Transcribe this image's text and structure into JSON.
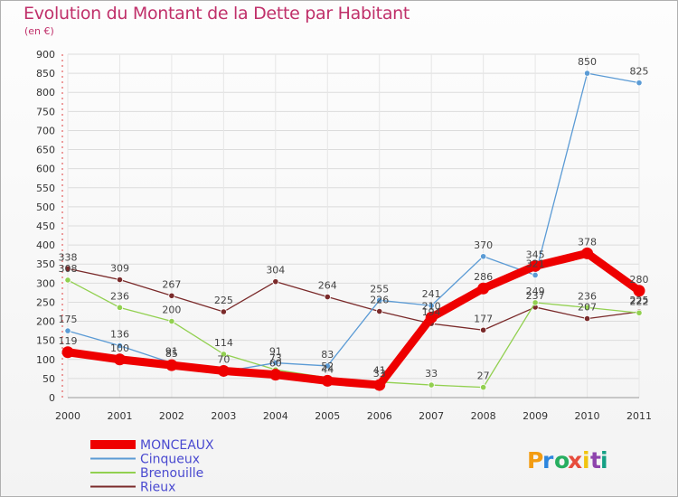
{
  "chart_data": {
    "type": "line",
    "title": "Evolution du Montant de la Dette par Habitant",
    "subtitle": "(en €)",
    "xlabel": "",
    "ylabel": "",
    "categories": [
      "2000",
      "2001",
      "2002",
      "2003",
      "2004",
      "2005",
      "2006",
      "2007",
      "2008",
      "2009",
      "2010",
      "2011"
    ],
    "ylim": [
      0,
      900
    ],
    "yticks": [
      0,
      50,
      100,
      150,
      200,
      250,
      300,
      350,
      400,
      450,
      500,
      550,
      600,
      650,
      700,
      750,
      800,
      850,
      900
    ],
    "grid": true,
    "legend": "bottom-left",
    "series": [
      {
        "name": "MONCEAUX",
        "color": "#ee0000",
        "values": [
          119,
          100,
          85,
          70,
          60,
          44,
          33,
          210,
          286,
          345,
          378,
          280
        ]
      },
      {
        "name": "Cinqueux",
        "color": "#5b9bd5",
        "values": [
          175,
          136,
          91,
          68,
          91,
          83,
          255,
          241,
          370,
          321,
          850,
          825
        ]
      },
      {
        "name": "Brenouille",
        "color": "#92d050",
        "values": [
          308,
          236,
          200,
          114,
          73,
          52,
          41,
          33,
          27,
          249,
          236,
          222
        ]
      },
      {
        "name": "Rieux",
        "color": "#7a2a2a",
        "values": [
          338,
          309,
          267,
          225,
          304,
          264,
          226,
          194,
          177,
          237,
          207,
          225
        ]
      }
    ],
    "data_labels": [
      {
        "series": 0,
        "labels": [
          "119",
          "100",
          "85",
          "70",
          "60",
          "44",
          "33",
          "210",
          "286",
          "345",
          "378",
          "280"
        ]
      },
      {
        "series": 1,
        "labels": [
          "175",
          "136",
          "91",
          "",
          "91",
          "83",
          "255",
          "241",
          "370",
          "321",
          "850",
          "825"
        ]
      },
      {
        "series": 2,
        "labels": [
          "308",
          "236",
          "200",
          "114",
          "73",
          "52",
          "41",
          "33",
          "27",
          "249",
          "236",
          "222"
        ]
      },
      {
        "series": 3,
        "labels": [
          "338",
          "309",
          "267",
          "225",
          "304",
          "264",
          "226",
          "194",
          "177",
          "237",
          "207",
          "225"
        ]
      }
    ]
  },
  "branding": {
    "logo_text": "Proxiti",
    "logo_colors": [
      "#f39c12",
      "#2e86de",
      "#27ae60",
      "#e74c3c",
      "#f1c40f",
      "#8e44ad",
      "#16a085"
    ]
  }
}
